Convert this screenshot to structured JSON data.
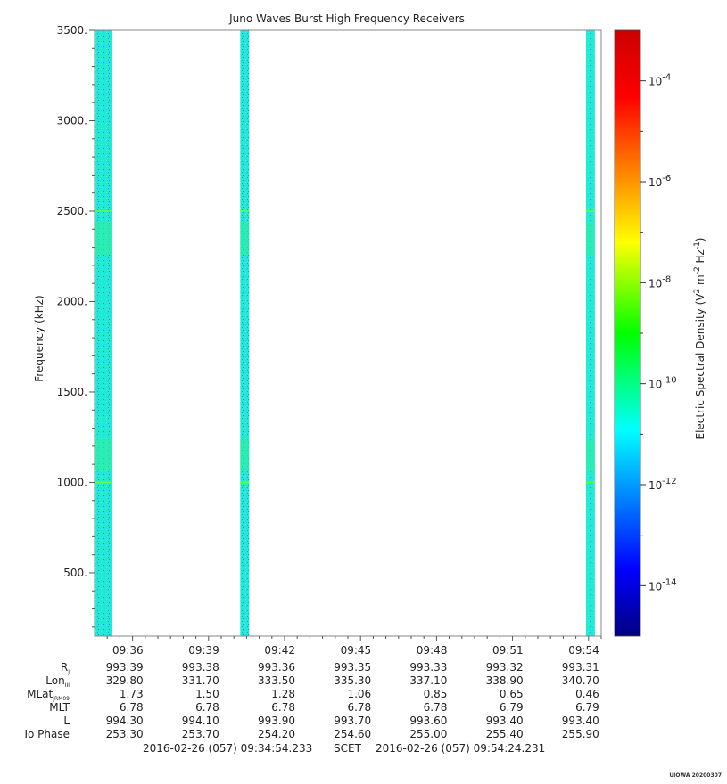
{
  "chart_data": {
    "type": "heatmap",
    "title": "Juno Waves Burst High Frequency Receivers",
    "ylabel": "Frequency (kHz)",
    "ylim": [
      150,
      3500
    ],
    "yticks": [
      "3500.",
      "3000.",
      "2500.",
      "2000.",
      "1500.",
      "1000.",
      "500."
    ],
    "ytick_values": [
      3500,
      3000,
      2500,
      2000,
      1500,
      1000,
      500
    ],
    "x_range_minutes": [
      0,
      20
    ],
    "xticks": [
      "09:36",
      "09:39",
      "09:42",
      "09:45",
      "09:48",
      "09:51",
      "09:54"
    ],
    "xtick_minutes": [
      1.5,
      4.5,
      7.5,
      10.5,
      13.5,
      16.5,
      19.5
    ],
    "data_bands_minutes": [
      [
        0,
        0.7
      ],
      [
        5.75,
        6.1
      ],
      [
        19.4,
        19.75
      ]
    ],
    "band_level_log10": -12,
    "colorbar": {
      "label_text": "Electric Spectral Density (V",
      "label_sup1": "2",
      "label_mid": " m",
      "label_sup2": "-2",
      "label_mid2": " Hz",
      "label_sup3": "-1",
      "label_end": ")",
      "range_log10": [
        -15,
        -3
      ],
      "tick_base": "10",
      "tick_exponents": [
        "-4",
        "-6",
        "-8",
        "-10",
        "-12",
        "-14"
      ],
      "tick_values": [
        -4,
        -6,
        -8,
        -10,
        -12,
        -14
      ]
    },
    "ephemeris": {
      "row_labels": [
        "R",
        "Lon",
        "MLat",
        "MLT",
        "L",
        "Io Phase"
      ],
      "row_subscripts": [
        "J",
        "III",
        "JRM09",
        "",
        "",
        ""
      ],
      "rows": [
        [
          "993.39",
          "993.38",
          "993.36",
          "993.35",
          "993.33",
          "993.32",
          "993.31"
        ],
        [
          "329.80",
          "331.70",
          "333.50",
          "335.30",
          "337.10",
          "338.90",
          "340.70"
        ],
        [
          "1.73",
          "1.50",
          "1.28",
          "1.06",
          "0.85",
          "0.65",
          "0.46"
        ],
        [
          "6.78",
          "6.78",
          "6.78",
          "6.78",
          "6.78",
          "6.79",
          "6.79"
        ],
        [
          "994.30",
          "994.10",
          "993.90",
          "993.70",
          "993.60",
          "993.40",
          "993.40"
        ],
        [
          "253.30",
          "253.70",
          "254.20",
          "254.60",
          "255.00",
          "255.40",
          "255.90"
        ]
      ]
    },
    "time_span": {
      "start": "2016-02-26 (057) 09:34:54.233",
      "label": "SCET",
      "end": "2016-02-26 (057) 09:54:24.231"
    },
    "tag": "UIOWA 20200307"
  }
}
